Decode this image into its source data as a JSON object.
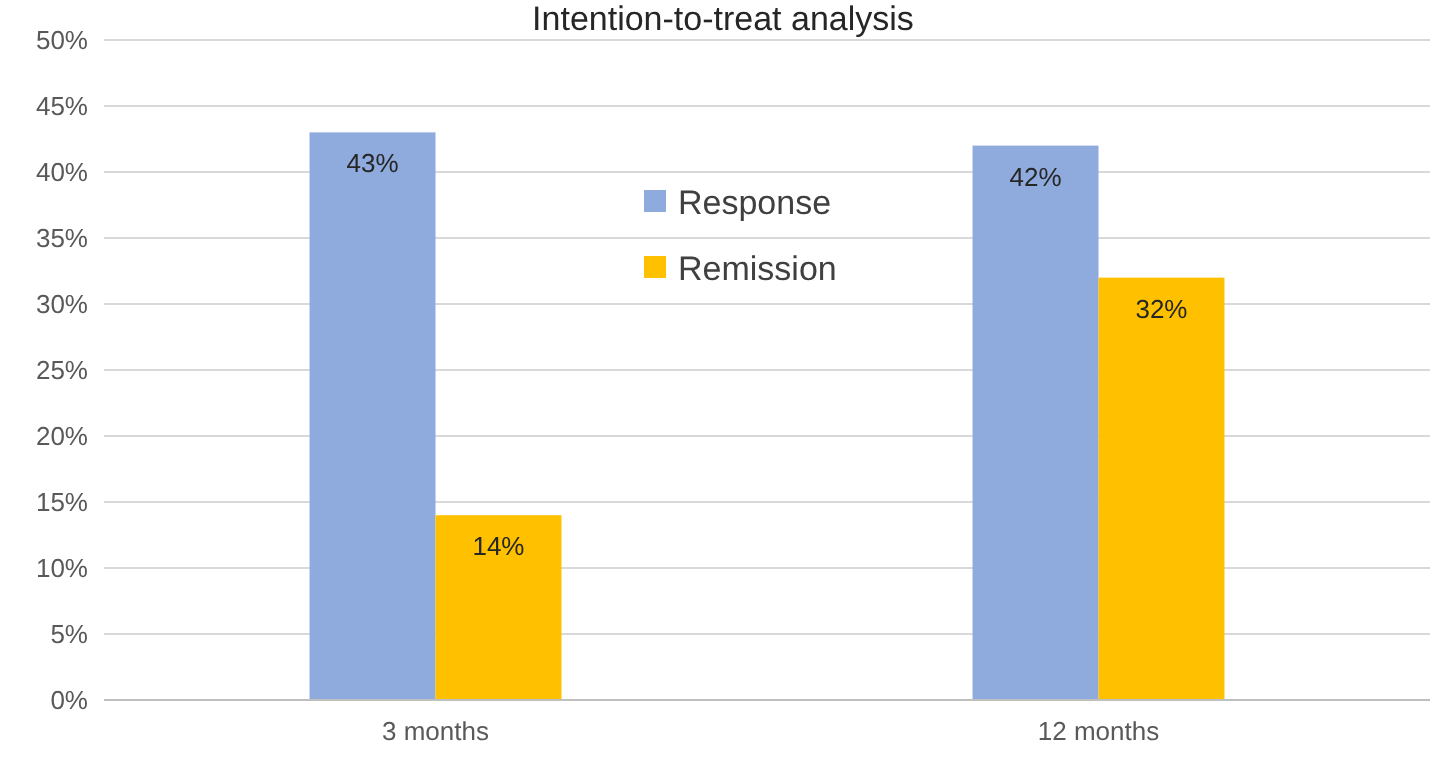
{
  "chart_data": {
    "type": "bar",
    "title": "Intention-to-treat analysis",
    "categories": [
      "3 months",
      "12 months"
    ],
    "series": [
      {
        "name": "Response",
        "color": "#8faadc",
        "values": [
          43,
          42
        ],
        "value_labels": [
          "43%",
          "42%"
        ]
      },
      {
        "name": "Remission",
        "color": "#ffc000",
        "values": [
          14,
          32
        ],
        "value_labels": [
          "14%",
          "32%"
        ]
      }
    ],
    "ylim": [
      0,
      50
    ],
    "yticks": [
      {
        "value": 0,
        "label": "0%"
      },
      {
        "value": 5,
        "label": "5%"
      },
      {
        "value": 10,
        "label": "10%"
      },
      {
        "value": 15,
        "label": "15%"
      },
      {
        "value": 20,
        "label": "20%"
      },
      {
        "value": 25,
        "label": "25%"
      },
      {
        "value": 30,
        "label": "30%"
      },
      {
        "value": 35,
        "label": "35%"
      },
      {
        "value": 40,
        "label": "40%"
      },
      {
        "value": 45,
        "label": "45%"
      },
      {
        "value": 50,
        "label": "50%"
      }
    ],
    "grid": "y",
    "legend": "top"
  }
}
